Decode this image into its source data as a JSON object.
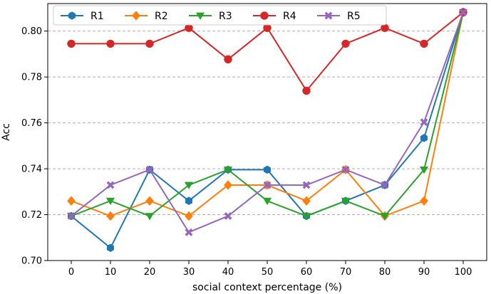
{
  "chart_data": {
    "type": "line",
    "title": "",
    "xlabel": "social context percentage (%)",
    "ylabel": "Acc",
    "x": [
      0,
      10,
      20,
      30,
      40,
      50,
      60,
      70,
      80,
      90,
      100
    ],
    "xticks": [
      "0",
      "10",
      "20",
      "30",
      "40",
      "50",
      "60",
      "70",
      "80",
      "90",
      "100"
    ],
    "yticks": [
      "0.70",
      "0.72",
      "0.74",
      "0.76",
      "0.78",
      "0.80"
    ],
    "ylim": [
      0.7,
      0.812
    ],
    "xlim": [
      -6,
      106
    ],
    "grid": "horizontal-dashed",
    "legend_position": "top",
    "series": [
      {
        "name": "R1",
        "color": "#1f77b4",
        "marker": "hexagon",
        "values": [
          0.7194,
          0.7055,
          0.7396,
          0.726,
          0.7396,
          0.7396,
          0.7194,
          0.726,
          0.7329,
          0.7534,
          0.8082
        ]
      },
      {
        "name": "R2",
        "color": "#ff7f0e",
        "marker": "diamond",
        "values": [
          0.726,
          0.7194,
          0.726,
          0.7194,
          0.7329,
          0.7329,
          0.726,
          0.7396,
          0.7194,
          0.726,
          0.8082
        ]
      },
      {
        "name": "R3",
        "color": "#2ca02c",
        "marker": "triangle-down",
        "values": [
          0.7194,
          0.726,
          0.7194,
          0.7329,
          0.7396,
          0.726,
          0.7194,
          0.726,
          0.7194,
          0.7396,
          0.8082
        ]
      },
      {
        "name": "R4",
        "color": "#d62728",
        "marker": "circle",
        "values": [
          0.7945,
          0.7945,
          0.7945,
          0.8014,
          0.7877,
          0.8014,
          0.774,
          0.7945,
          0.8014,
          0.7945,
          0.8082
        ]
      },
      {
        "name": "R5",
        "color": "#9467bd",
        "marker": "x",
        "values": [
          0.7194,
          0.7329,
          0.7396,
          0.7123,
          0.7194,
          0.7329,
          0.7329,
          0.7396,
          0.7329,
          0.7603,
          0.8082
        ]
      }
    ]
  }
}
